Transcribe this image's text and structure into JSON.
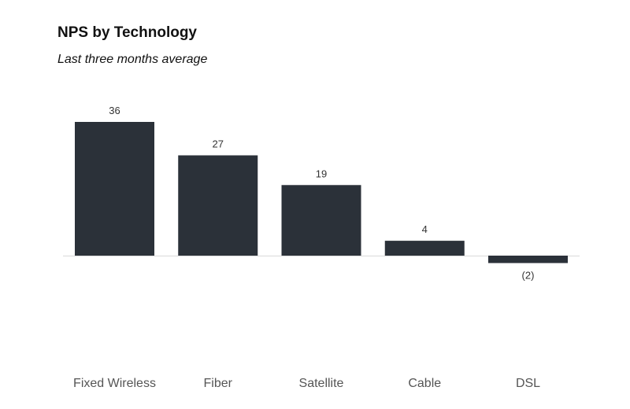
{
  "chart_data": {
    "type": "bar",
    "title": "NPS by Technology",
    "subtitle": "Last three months average",
    "categories": [
      "Fixed Wireless",
      "Fiber",
      "Satellite",
      "Cable",
      "DSL"
    ],
    "values": [
      36,
      27,
      19,
      4,
      -2
    ],
    "data_labels": [
      "36",
      "27",
      "19",
      "4",
      "(2)"
    ],
    "xlabel": "",
    "ylabel": "",
    "ylim": [
      -2,
      36
    ],
    "grid": false,
    "legend": "none",
    "bar_color": "#2b3139"
  }
}
